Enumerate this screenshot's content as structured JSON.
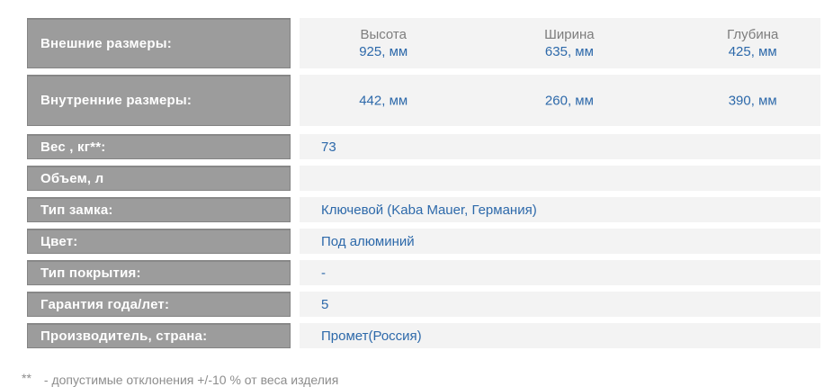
{
  "table": {
    "dim_columns": [
      "Высота",
      "Ширина",
      "Глубина"
    ],
    "external": {
      "label": "Внешние размеры:",
      "values": [
        "925, мм",
        "635, мм",
        "425, мм"
      ]
    },
    "internal": {
      "label": "Внутренние размеры:",
      "values": [
        "442, мм",
        "260, мм",
        "390, мм"
      ]
    },
    "rows": [
      {
        "label": "Вес , кг**:",
        "value": "73"
      },
      {
        "label": "Объем, л",
        "value": ""
      },
      {
        "label": "Тип замка:",
        "value": "Ключевой (Kaba Mauer, Германия)"
      },
      {
        "label": "Цвет:",
        "value": "Под алюминий"
      },
      {
        "label": "Тип покрытия:",
        "value": "-"
      },
      {
        "label": "Гарантия года/лет:",
        "value": "5"
      },
      {
        "label": "Производитель, страна:",
        "value": "Промет(Россия)"
      }
    ]
  },
  "footnote": {
    "marker": "**",
    "text": "- допустимые отклонения +/-10 % от веса изделия"
  },
  "colors": {
    "label_cell_bg": "#9c9c9c",
    "value_cell_bg": "#f3f3f3",
    "value_text": "#2d69aa",
    "dim_header_text": "#7d7d7d",
    "label_text": "#ffffff",
    "footnote_text": "#8d8d8d"
  }
}
